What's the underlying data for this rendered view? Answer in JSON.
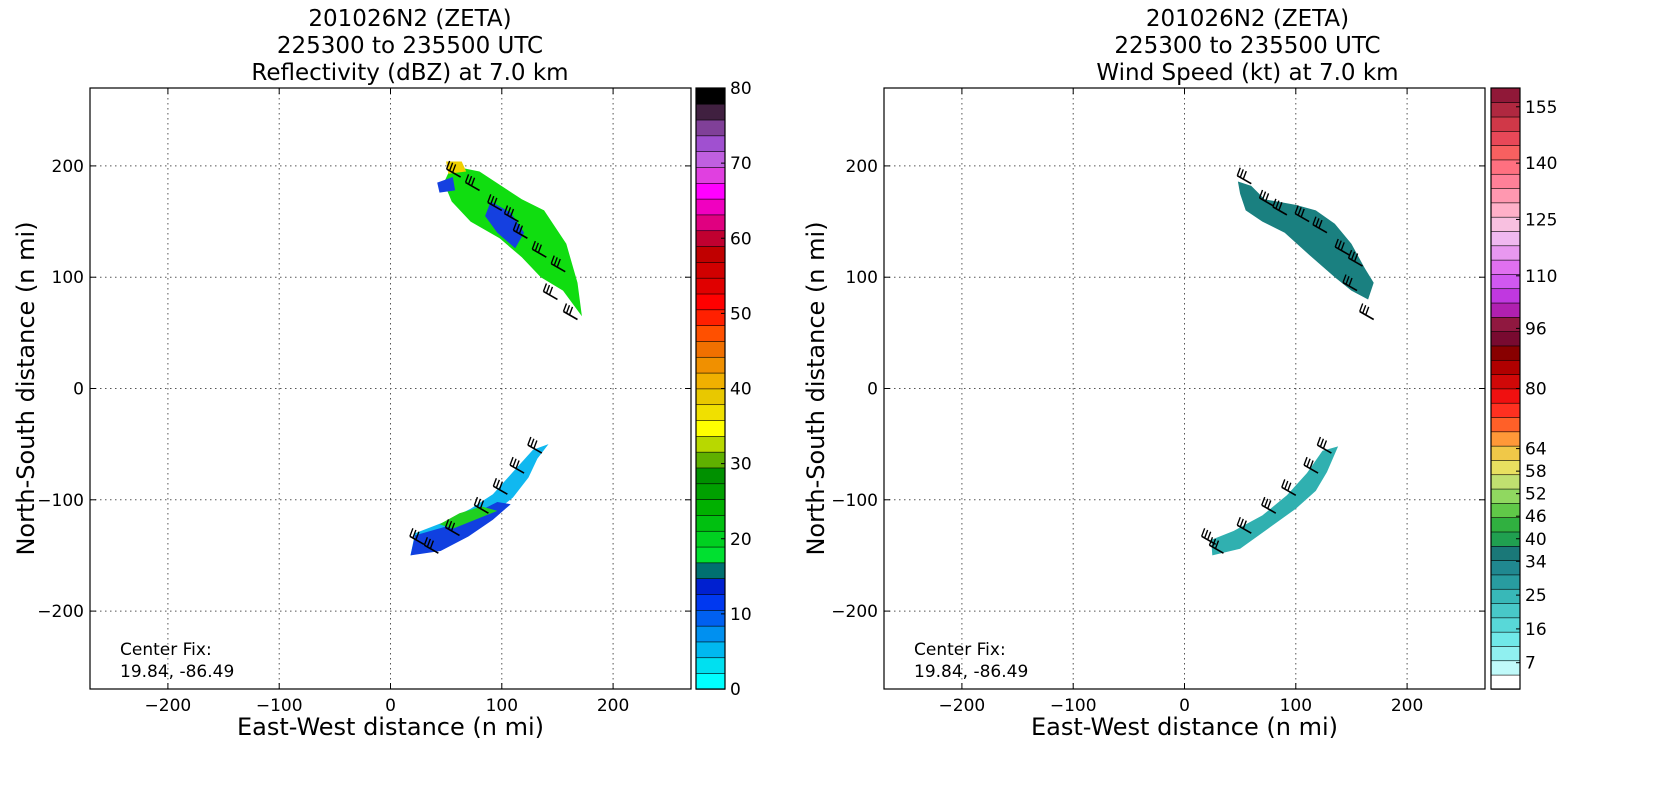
{
  "chart_data": [
    {
      "type": "heatmap",
      "title": [
        "201026N2 (ZETA)",
        "225300 to 235500 UTC",
        "Reflectivity (dBZ) at 7.0 km"
      ],
      "xlabel": "East-West distance (n mi)",
      "ylabel": "North-South distance (n mi)",
      "xlim": [
        -270,
        270
      ],
      "ylim": [
        -270,
        270
      ],
      "xticks": [
        -200,
        -100,
        0,
        100,
        200
      ],
      "yticks": [
        -200,
        -100,
        0,
        100,
        200
      ],
      "grid": true,
      "annotation": [
        "Center Fix:",
        "19.84, -86.49"
      ],
      "colorbar": {
        "min": 0,
        "max": 80,
        "ticks": [
          0,
          10,
          20,
          30,
          40,
          50,
          60,
          70,
          80
        ],
        "colors": [
          "#00ffff",
          "#00e0f0",
          "#00b8f0",
          "#0090f0",
          "#0060f0",
          "#0038f0",
          "#0020d0",
          "#007070",
          "#00e030",
          "#00d020",
          "#00c010",
          "#00b000",
          "#00a000",
          "#009000",
          "#60b000",
          "#b8d800",
          "#ffff00",
          "#f0e000",
          "#e8c800",
          "#f0b000",
          "#f09000",
          "#f07000",
          "#ff5000",
          "#ff2000",
          "#ff0000",
          "#e00000",
          "#d00000",
          "#c00000",
          "#c00030",
          "#e00080",
          "#f000c0",
          "#ff00ff",
          "#e040e0",
          "#c060e0",
          "#a050d0",
          "#804098",
          "#402040",
          "#000000"
        ]
      },
      "features": [
        {
          "name": "northern-band",
          "color": "#10dd10",
          "polygon": [
            [
              55,
              200
            ],
            [
              80,
              195
            ],
            [
              118,
              170
            ],
            [
              138,
              160
            ],
            [
              158,
              130
            ],
            [
              168,
              95
            ],
            [
              172,
              65
            ],
            [
              155,
              88
            ],
            [
              135,
              100
            ],
            [
              118,
              118
            ],
            [
              98,
              135
            ],
            [
              72,
              150
            ],
            [
              55,
              168
            ],
            [
              48,
              185
            ]
          ]
        },
        {
          "name": "northern-core",
          "color": "#1540e0",
          "polygon": [
            [
              90,
              168
            ],
            [
              108,
              158
            ],
            [
              120,
              140
            ],
            [
              112,
              126
            ],
            [
              96,
              140
            ],
            [
              85,
              155
            ]
          ]
        },
        {
          "name": "northern-tip",
          "color": "#1540e0",
          "polygon": [
            [
              42,
              185
            ],
            [
              56,
              190
            ],
            [
              58,
              178
            ],
            [
              44,
              176
            ]
          ]
        },
        {
          "name": "northern-yellow",
          "color": "#f0d000",
          "polygon": [
            [
              50,
              204
            ],
            [
              64,
              204
            ],
            [
              68,
              195
            ],
            [
              52,
              193
            ]
          ]
        },
        {
          "name": "southern-band",
          "color": "#10b8f0",
          "polygon": [
            [
              18,
              -150
            ],
            [
              38,
              -145
            ],
            [
              62,
              -130
            ],
            [
              90,
              -114
            ],
            [
              110,
              -98
            ],
            [
              124,
              -80
            ],
            [
              132,
              -63
            ],
            [
              142,
              -50
            ],
            [
              128,
              -55
            ],
            [
              110,
              -75
            ],
            [
              92,
              -95
            ],
            [
              72,
              -108
            ],
            [
              48,
              -120
            ],
            [
              22,
              -130
            ]
          ]
        },
        {
          "name": "southern-core",
          "color": "#1040e0",
          "polygon": [
            [
              18,
              -150
            ],
            [
              45,
              -146
            ],
            [
              70,
              -133
            ],
            [
              92,
              -118
            ],
            [
              108,
              -104
            ],
            [
              96,
              -102
            ],
            [
              76,
              -112
            ],
            [
              50,
              -124
            ],
            [
              22,
              -132
            ]
          ]
        },
        {
          "name": "southern-green",
          "color": "#20d020",
          "polygon": [
            [
              44,
              -122
            ],
            [
              62,
              -112
            ],
            [
              82,
              -106
            ],
            [
              96,
              -110
            ],
            [
              76,
              -118
            ],
            [
              56,
              -126
            ]
          ]
        }
      ],
      "barbs": [
        [
          63,
          190
        ],
        [
          80,
          178
        ],
        [
          100,
          160
        ],
        [
          115,
          150
        ],
        [
          123,
          135
        ],
        [
          140,
          118
        ],
        [
          157,
          105
        ],
        [
          150,
          80
        ],
        [
          168,
          62
        ],
        [
          43,
          -148
        ],
        [
          62,
          -132
        ],
        [
          88,
          -112
        ],
        [
          105,
          -95
        ],
        [
          120,
          -76
        ],
        [
          136,
          -58
        ],
        [
          30,
          -140
        ]
      ]
    },
    {
      "type": "heatmap",
      "title": [
        "201026N2 (ZETA)",
        "225300 to 235500 UTC",
        "Wind Speed (kt) at 7.0 km"
      ],
      "xlabel": "East-West distance (n mi)",
      "ylabel": "North-South distance (n mi)",
      "xlim": [
        -270,
        270
      ],
      "ylim": [
        -270,
        270
      ],
      "xticks": [
        -200,
        -100,
        0,
        100,
        200
      ],
      "yticks": [
        -200,
        -100,
        0,
        100,
        200
      ],
      "grid": true,
      "annotation": [
        "Center Fix:",
        "19.84, -86.49"
      ],
      "colorbar": {
        "min": 0,
        "max": 160,
        "ticks": [
          7,
          16,
          25,
          34,
          40,
          46,
          52,
          58,
          64,
          80,
          96,
          110,
          125,
          140,
          155
        ],
        "colors": [
          "#ffffff",
          "#c0fafa",
          "#90f0f0",
          "#70e8e8",
          "#58d8d8",
          "#48c8c8",
          "#38b8b8",
          "#289ca0",
          "#208890",
          "#1a7878",
          "#20a050",
          "#30b040",
          "#60c848",
          "#90d860",
          "#c0e070",
          "#e8e060",
          "#f0c848",
          "#ff9838",
          "#ff6028",
          "#ff3020",
          "#f01010",
          "#d00808",
          "#b00000",
          "#880000",
          "#780a30",
          "#901840",
          "#b020b0",
          "#c038e0",
          "#d058f0",
          "#e070f0",
          "#e898f0",
          "#f0b8f0",
          "#f8c0e0",
          "#ffb0c8",
          "#ff98b0",
          "#ff8098",
          "#ff7080",
          "#f86060",
          "#e84858",
          "#d03848",
          "#b02840",
          "#901838"
        ]
      },
      "features": [
        {
          "name": "northern-band",
          "color": "#1a8080",
          "polygon": [
            [
              48,
              186
            ],
            [
              60,
              182
            ],
            [
              72,
              170
            ],
            [
              100,
              165
            ],
            [
              118,
              160
            ],
            [
              135,
              148
            ],
            [
              150,
              130
            ],
            [
              162,
              108
            ],
            [
              170,
              95
            ],
            [
              165,
              80
            ],
            [
              150,
              88
            ],
            [
              135,
              100
            ],
            [
              112,
              120
            ],
            [
              90,
              140
            ],
            [
              70,
              150
            ],
            [
              55,
              160
            ],
            [
              50,
              175
            ]
          ]
        },
        {
          "name": "southern-band",
          "color": "#30b0b0",
          "polygon": [
            [
              25,
              -150
            ],
            [
              50,
              -144
            ],
            [
              75,
              -126
            ],
            [
              100,
              -108
            ],
            [
              118,
              -92
            ],
            [
              128,
              -75
            ],
            [
              138,
              -52
            ],
            [
              124,
              -56
            ],
            [
              110,
              -76
            ],
            [
              92,
              -96
            ],
            [
              70,
              -114
            ],
            [
              44,
              -128
            ],
            [
              24,
              -136
            ]
          ]
        }
      ],
      "barbs": [
        [
          60,
          184
        ],
        [
          80,
          164
        ],
        [
          92,
          156
        ],
        [
          112,
          150
        ],
        [
          128,
          140
        ],
        [
          148,
          120
        ],
        [
          160,
          110
        ],
        [
          155,
          88
        ],
        [
          170,
          62
        ],
        [
          35,
          -148
        ],
        [
          60,
          -130
        ],
        [
          82,
          -112
        ],
        [
          100,
          -96
        ],
        [
          120,
          -76
        ],
        [
          132,
          -58
        ],
        [
          28,
          -140
        ]
      ]
    }
  ]
}
